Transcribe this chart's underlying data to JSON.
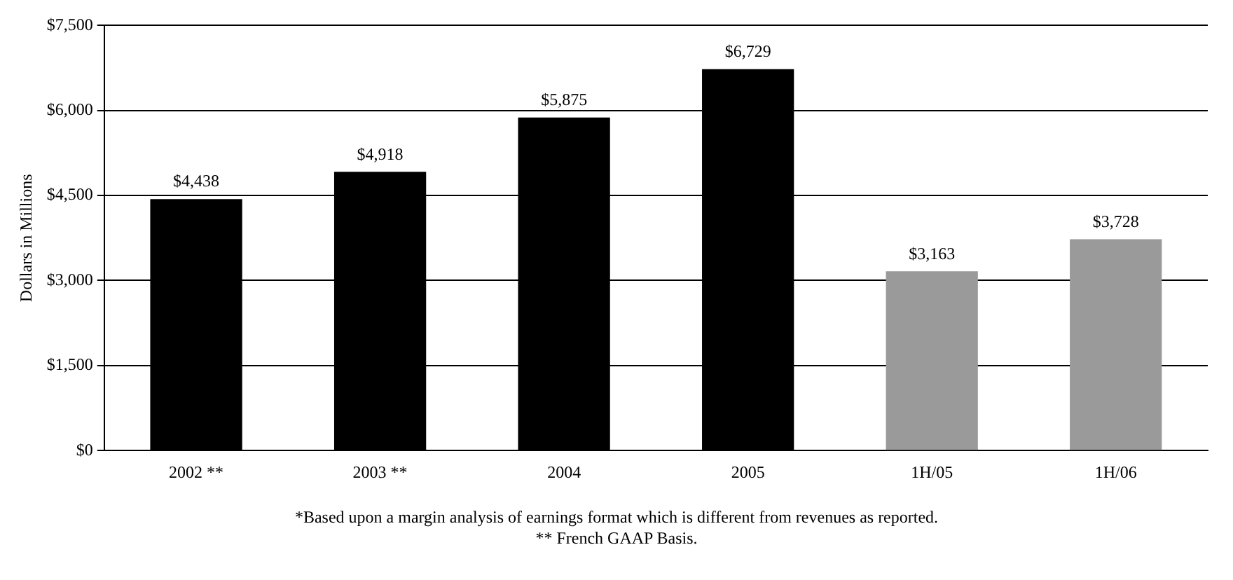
{
  "chart_data": {
    "type": "bar",
    "ylabel": "Dollars in Millions",
    "categories": [
      "2002 **",
      "2003 **",
      "2004",
      "2005",
      "1H/05",
      "1H/06"
    ],
    "values": [
      4438,
      4918,
      5875,
      6729,
      3163,
      3728
    ],
    "colors": [
      "#000000",
      "#000000",
      "#000000",
      "#000000",
      "#9a9a9a",
      "#9a9a9a"
    ],
    "value_labels": [
      "$4,438",
      "$4,918",
      "$5,875",
      "$6,729",
      "$3,163",
      "$3,728"
    ],
    "ylim": [
      0,
      7500
    ],
    "yticks": [
      {
        "value": 0,
        "label": "$0"
      },
      {
        "value": 1500,
        "label": "$1,500"
      },
      {
        "value": 3000,
        "label": "$3,000"
      },
      {
        "value": 4500,
        "label": "$4,500"
      },
      {
        "value": 6000,
        "label": "$6,000"
      },
      {
        "value": 7500,
        "label": "$7,500"
      }
    ],
    "grid": "y",
    "legend": false,
    "annotations": [
      "*Based upon a margin analysis of earnings format which is different from revenues as reported.",
      "** French GAAP Basis."
    ]
  }
}
